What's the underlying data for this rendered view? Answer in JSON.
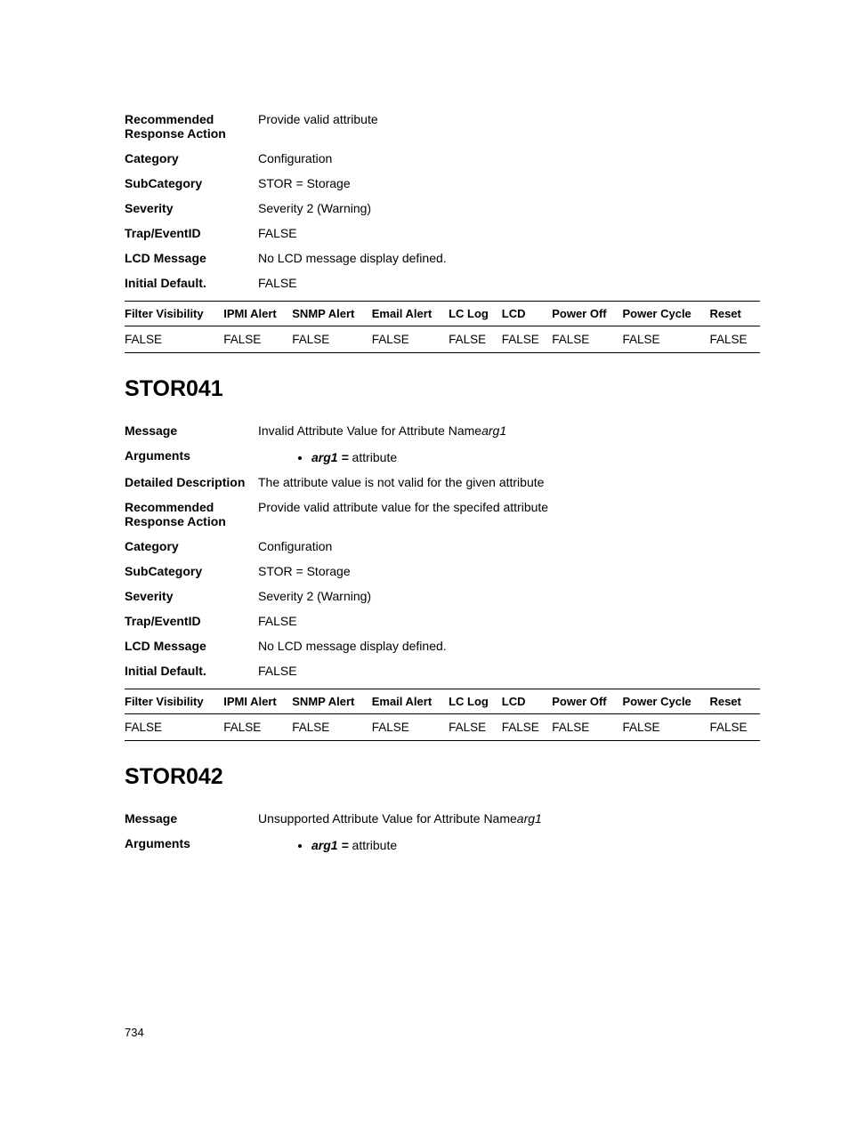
{
  "section1": {
    "rows": [
      {
        "label": "Recommended Response Action",
        "value": "Provide valid attribute"
      },
      {
        "label": "Category",
        "value": "Configuration"
      },
      {
        "label": "SubCategory",
        "value": "STOR = Storage"
      },
      {
        "label": "Severity",
        "value": "Severity 2 (Warning)"
      },
      {
        "label": "Trap/EventID",
        "value": "FALSE"
      },
      {
        "label": "LCD Message",
        "value": "No LCD message display defined."
      },
      {
        "label": "Initial Default.",
        "value": "FALSE"
      }
    ]
  },
  "filter_headers": [
    "Filter Visibility",
    "IPMI Alert",
    "SNMP Alert",
    "Email Alert",
    "LC Log",
    "LCD",
    "Power Off",
    "Power Cycle",
    "Reset"
  ],
  "section1_filter_row": [
    "FALSE",
    "FALSE",
    "FALSE",
    "FALSE",
    "FALSE",
    "FALSE",
    "FALSE",
    "FALSE",
    "FALSE"
  ],
  "section2": {
    "title": "STOR041",
    "message_label": "Message",
    "message_prefix": "Invalid Attribute Value for Attribute Name",
    "message_arg": "arg1",
    "arguments_label": "Arguments",
    "arg_name": "arg1",
    "arg_eq": " = ",
    "arg_value": "attribute",
    "rows": [
      {
        "label": "Detailed Description",
        "value": "The attribute value is not valid for the given attribute"
      },
      {
        "label": "Recommended Response Action",
        "value": "Provide valid attribute value for the specifed attribute"
      },
      {
        "label": "Category",
        "value": "Configuration"
      },
      {
        "label": "SubCategory",
        "value": "STOR = Storage"
      },
      {
        "label": "Severity",
        "value": "Severity 2 (Warning)"
      },
      {
        "label": "Trap/EventID",
        "value": "FALSE"
      },
      {
        "label": "LCD Message",
        "value": "No LCD message display defined."
      },
      {
        "label": "Initial Default.",
        "value": "FALSE"
      }
    ],
    "filter_row": [
      "FALSE",
      "FALSE",
      "FALSE",
      "FALSE",
      "FALSE",
      "FALSE",
      "FALSE",
      "FALSE",
      "FALSE"
    ]
  },
  "section3": {
    "title": "STOR042",
    "message_label": "Message",
    "message_prefix": "Unsupported Attribute Value for Attribute Name",
    "message_arg": "arg1",
    "arguments_label": "Arguments",
    "arg_name": "arg1",
    "arg_eq": " = ",
    "arg_value": "attribute"
  },
  "page_number": "734"
}
